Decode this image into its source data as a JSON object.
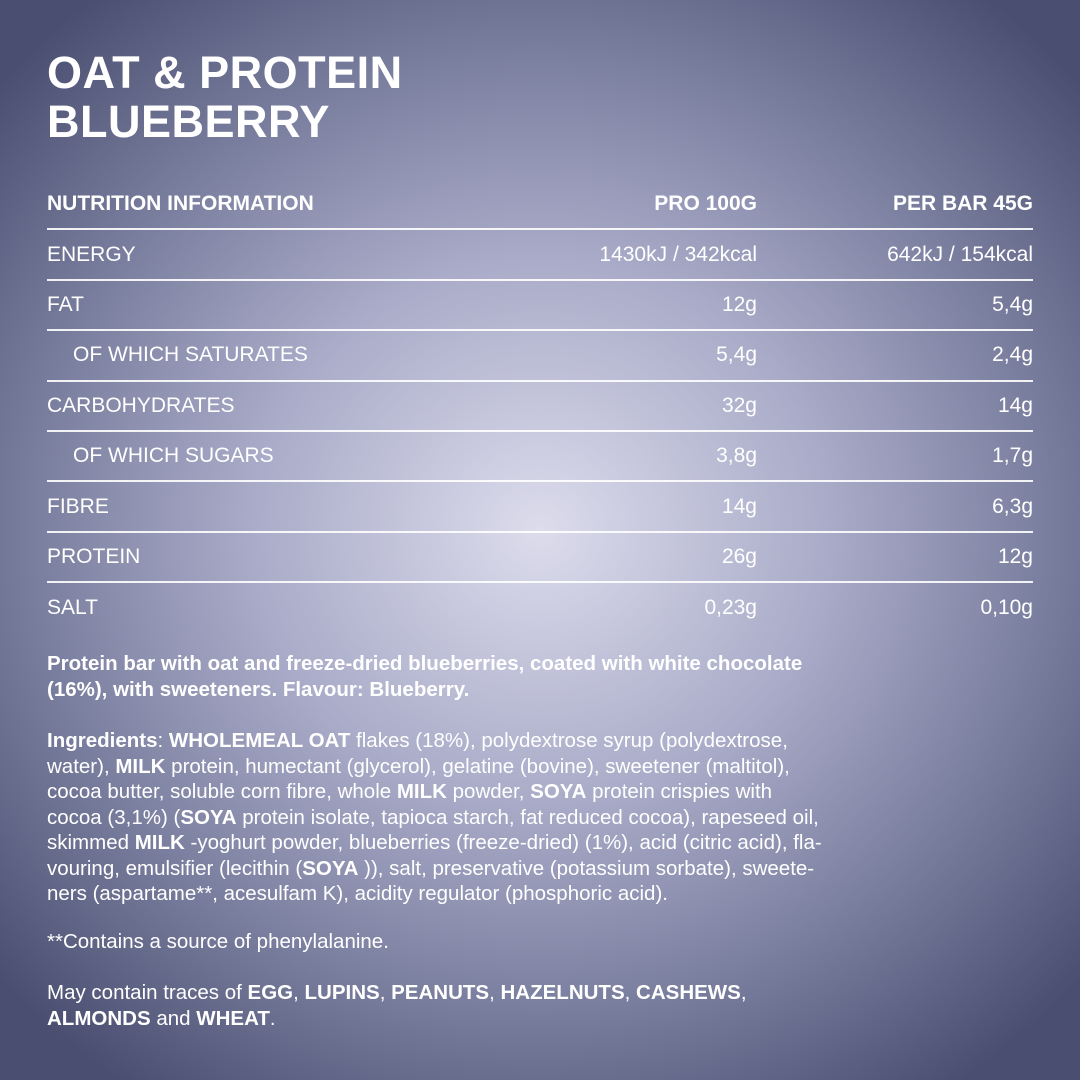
{
  "title": {
    "line1": "OAT & PROTEIN",
    "line2": "BLUEBERRY"
  },
  "table": {
    "headers": [
      "NUTRITION INFORMATION",
      "PRO 100G",
      "PER BAR 45G"
    ],
    "rows": [
      {
        "label": "ENERGY",
        "per100": "1430kJ / 342kcal",
        "perBar": "642kJ / 154kcal",
        "sub": false
      },
      {
        "label": "FAT",
        "per100": "12g",
        "perBar": "5,4g",
        "sub": false
      },
      {
        "label": "OF WHICH SATURATES",
        "per100": "5,4g",
        "perBar": "2,4g",
        "sub": true
      },
      {
        "label": "CARBOHYDRATES",
        "per100": "32g",
        "perBar": "14g",
        "sub": false
      },
      {
        "label": "OF WHICH SUGARS",
        "per100": "3,8g",
        "perBar": "1,7g",
        "sub": true
      },
      {
        "label": "FIBRE",
        "per100": "14g",
        "perBar": "6,3g",
        "sub": false
      },
      {
        "label": "PROTEIN",
        "per100": "26g",
        "perBar": "12g",
        "sub": false
      },
      {
        "label": "SALT",
        "per100": "0,23g",
        "perBar": "0,10g",
        "sub": false
      }
    ]
  },
  "paragraphs": [
    {
      "name": "description",
      "lines": [
        [
          [
            "Protein bar with oat and freeze-dried blueberries, coated with white chocolate",
            true
          ]
        ],
        [
          [
            "(16%), with sweeteners. Flavour: Blueberry.",
            true
          ]
        ]
      ]
    },
    {
      "name": "ingredients",
      "lines": [
        [
          [
            "Ingredients",
            true
          ],
          [
            ": ",
            false
          ],
          [
            "WHOLEMEAL OAT",
            true
          ],
          [
            " flakes (18%), polydextrose syrup (polydextrose,",
            false
          ]
        ],
        [
          [
            "water), ",
            false
          ],
          [
            "MILK",
            true
          ],
          [
            " protein, humectant (glycerol), gelatine (bovine), sweetener (maltitol),",
            false
          ]
        ],
        [
          [
            "cocoa butter, soluble corn fibre, whole ",
            false
          ],
          [
            "MILK",
            true
          ],
          [
            " powder, ",
            false
          ],
          [
            "SOYA",
            true
          ],
          [
            " protein crispies with",
            false
          ]
        ],
        [
          [
            "cocoa (3,1%) (",
            false
          ],
          [
            "SOYA",
            true
          ],
          [
            " protein isolate, tapioca starch, fat reduced cocoa), rapeseed oil,",
            false
          ]
        ],
        [
          [
            "skimmed ",
            false
          ],
          [
            "MILK",
            true
          ],
          [
            " -yoghurt powder, blueberries (freeze-dried) (1%), acid (citric acid), fla-",
            false
          ]
        ],
        [
          [
            "vouring, emulsifier (lecithin (",
            false
          ],
          [
            "SOYA",
            true
          ],
          [
            " )), salt, preservative (potassium sorbate), sweete-",
            false
          ]
        ],
        [
          [
            "ners (aspartame**, acesulfam K), acidity regulator (phosphoric acid).",
            false
          ]
        ]
      ]
    },
    {
      "name": "phenylalanine-note",
      "lines": [
        [
          [
            "**Contains a source of phenylalanine.",
            false
          ]
        ]
      ]
    },
    {
      "name": "traces-note",
      "lines": [
        [
          [
            "May contain traces of ",
            false
          ],
          [
            "EGG",
            true
          ],
          [
            ", ",
            false
          ],
          [
            "LUPINS",
            true
          ],
          [
            ", ",
            false
          ],
          [
            "PEANUTS",
            true
          ],
          [
            ", ",
            false
          ],
          [
            "HAZELNUTS",
            true
          ],
          [
            ", ",
            false
          ],
          [
            "CASHEWS",
            true
          ],
          [
            ",",
            false
          ]
        ],
        [
          [
            "ALMONDS",
            true
          ],
          [
            " and ",
            false
          ],
          [
            "WHEAT",
            true
          ],
          [
            ".",
            false
          ]
        ]
      ]
    }
  ]
}
